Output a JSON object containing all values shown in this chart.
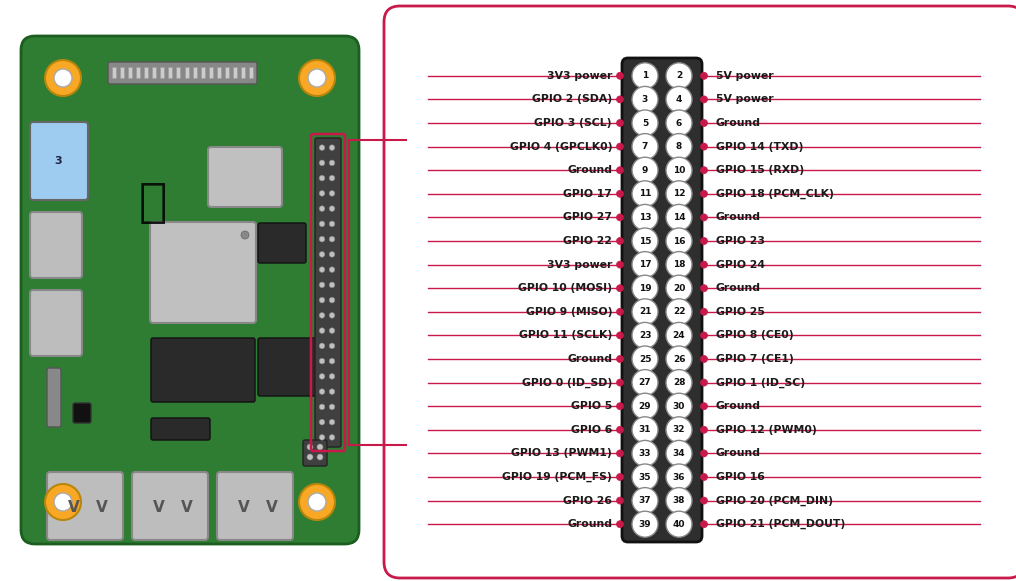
{
  "background_color": "#ffffff",
  "panel_edge_color": "#c8194a",
  "line_color": "#c8194a",
  "dot_color": "#c8194a",
  "label_color": "#1a1a1a",
  "left_labels": [
    "3V3 power",
    "GPIO 2 (SDA)",
    "GPIO 3 (SCL)",
    "GPIO 4 (GPCLK0)",
    "Ground",
    "GPIO 17",
    "GPIO 27",
    "GPIO 22",
    "3V3 power",
    "GPIO 10 (MOSI)",
    "GPIO 9 (MISO)",
    "GPIO 11 (SCLK)",
    "Ground",
    "GPIO 0 (ID_SD)",
    "GPIO 5",
    "GPIO 6",
    "GPIO 13 (PWM1)",
    "GPIO 19 (PCM_FS)",
    "GPIO 26",
    "Ground"
  ],
  "right_labels": [
    "5V power",
    "5V power",
    "Ground",
    "GPIO 14 (TXD)",
    "GPIO 15 (RXD)",
    "GPIO 18 (PCM_CLK)",
    "Ground",
    "GPIO 23",
    "GPIO 24",
    "Ground",
    "GPIO 25",
    "GPIO 8 (CE0)",
    "GPIO 7 (CE1)",
    "GPIO 1 (ID_SC)",
    "Ground",
    "GPIO 12 (PWM0)",
    "Ground",
    "GPIO 16",
    "GPIO 20 (PCM_DIN)",
    "GPIO 21 (PCM_DOUT)"
  ],
  "pin_numbers_left": [
    1,
    3,
    5,
    7,
    9,
    11,
    13,
    15,
    17,
    19,
    21,
    23,
    25,
    27,
    29,
    31,
    33,
    35,
    37,
    39
  ],
  "pin_numbers_right": [
    2,
    4,
    6,
    8,
    10,
    12,
    14,
    16,
    18,
    20,
    22,
    24,
    26,
    28,
    30,
    32,
    34,
    36,
    38,
    40
  ],
  "rpi_board_color": "#2e7d32",
  "rpi_board_edge": "#1b5e20",
  "bolt_outer": "#f9a825",
  "bolt_inner": "#ffffff",
  "usb_color": "#bdbdbd",
  "eth_color": "#bdbdbd",
  "chip_light": "#c0c0c0",
  "chip_dark": "#2a2a2a",
  "connector_dark": "#3a3a3a",
  "figsize": [
    10.16,
    5.81
  ],
  "dpi": 100
}
